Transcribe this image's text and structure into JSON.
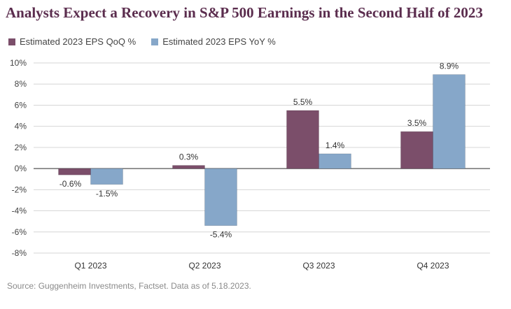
{
  "title": "Analysts Expect a Recovery in S&P 500 Earnings in the Second Half of 2023",
  "source": "Source: Guggenheim Investments, Factset. Data as of 5.18.2023.",
  "colors": {
    "qoq": "#7b4e6a",
    "yoy": "#86a7c9",
    "title": "#5b2d4e"
  },
  "chart_data": {
    "type": "bar",
    "title": "Analysts Expect a Recovery in S&P 500 Earnings in the Second Half of 2023",
    "categories": [
      "Q1 2023",
      "Q2 2023",
      "Q3 2023",
      "Q4 2023"
    ],
    "series": [
      {
        "name": "Estimated 2023 EPS QoQ %",
        "values": [
          -0.6,
          0.3,
          5.5,
          3.5
        ],
        "labels": [
          "-0.6%",
          "0.3%",
          "5.5%",
          "3.5%"
        ]
      },
      {
        "name": "Estimated 2023 EPS YoY %",
        "values": [
          -1.5,
          -5.4,
          1.4,
          8.9
        ],
        "labels": [
          "-1.5%",
          "-5.4%",
          "1.4%",
          "8.9%"
        ]
      }
    ],
    "yticks": [
      -8,
      -6,
      -4,
      -2,
      0,
      2,
      4,
      6,
      8,
      10
    ],
    "ytick_labels": [
      "-8%",
      "-6%",
      "-4%",
      "-2%",
      "0%",
      "2%",
      "4%",
      "6%",
      "8%",
      "10%"
    ],
    "ylim": [
      -8,
      10
    ],
    "grid": true,
    "legend": "top-left",
    "xlabel": "",
    "ylabel": ""
  }
}
